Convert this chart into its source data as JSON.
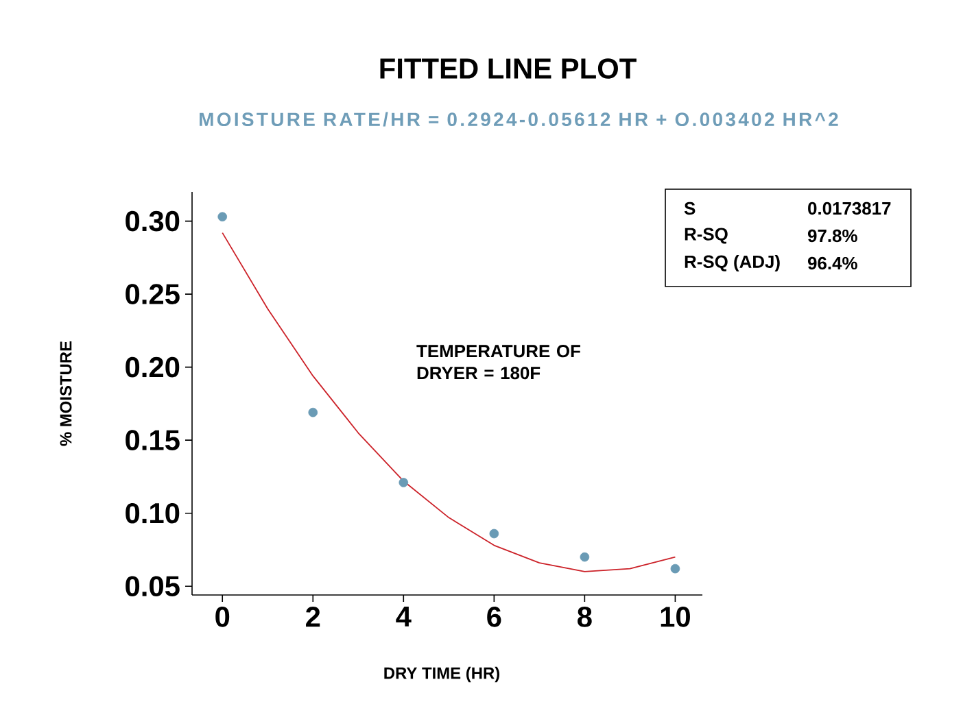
{
  "chart_data": {
    "type": "scatter",
    "title": "FITTED LINE PLOT",
    "subtitle": "MOISTURE RATE/HR = 0.2924-0.05612 HR + O.003402 HR^2",
    "xlabel": "DRY TIME (HR)",
    "ylabel": "% MOISTURE",
    "series": [
      {
        "color": "#6a9bb5",
        "marker": "circle",
        "x": [
          0,
          2,
          4,
          6,
          8,
          10
        ],
        "values": [
          0.303,
          0.169,
          0.121,
          0.086,
          0.07,
          0.062
        ]
      },
      {
        "type": "line",
        "color": "#cc2229",
        "marker": "none",
        "line_style": "solid",
        "x": [
          0,
          1,
          2,
          3,
          4,
          5,
          6,
          7,
          8,
          9,
          10
        ],
        "values": [
          0.292,
          0.24,
          0.194,
          0.155,
          0.122,
          0.097,
          0.078,
          0.066,
          0.06,
          0.062,
          0.07
        ]
      }
    ],
    "xlim": [
      -0.67,
      10.6
    ],
    "ylim": [
      0.044,
      0.32
    ],
    "xticks": [
      0,
      2,
      4,
      6,
      8,
      10
    ],
    "yticks": [
      {
        "value": 0.05,
        "label": "0.05"
      },
      {
        "value": 0.1,
        "label": "0.10"
      },
      {
        "value": 0.15,
        "label": "0.15"
      },
      {
        "value": 0.2,
        "label": "0.20"
      },
      {
        "value": 0.25,
        "label": "0.25"
      },
      {
        "value": 0.3,
        "label": "0.30"
      }
    ],
    "grid": false,
    "annotations": [
      "TEMPERATURE OF DRYER = 180F",
      "S",
      "0.0173817",
      "R-SQ",
      "97.8%",
      "R-SQ (ADJ)",
      "96.4%"
    ]
  }
}
